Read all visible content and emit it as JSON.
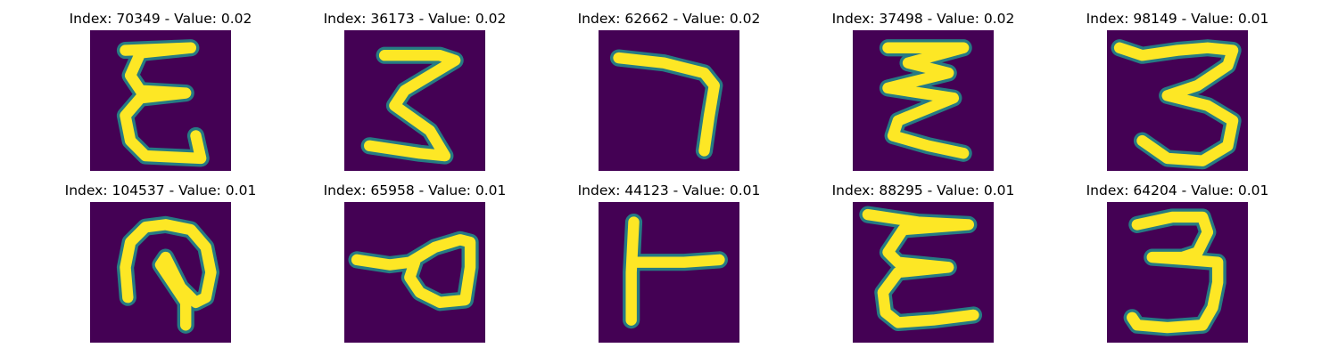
{
  "colors": {
    "background": "#440154",
    "stroke": "#fde725",
    "edge": "#21918c"
  },
  "panels": [
    {
      "title": "Index: 70349 - Value: 0.02",
      "glyph": "sigma-e"
    },
    {
      "title": "Index: 36173 - Value: 0.02",
      "glyph": "z-zigzag"
    },
    {
      "title": "Index: 62662 - Value: 0.02",
      "glyph": "seven-stroke"
    },
    {
      "title": "Index: 37498 - Value: 0.02",
      "glyph": "triple-zigzag"
    },
    {
      "title": "Index: 98149 - Value: 0.01",
      "glyph": "three"
    },
    {
      "title": "Index: 104537 - Value: 0.01",
      "glyph": "loop-hook"
    },
    {
      "title": "Index: 65958 - Value: 0.01",
      "glyph": "sideways-loop"
    },
    {
      "title": "Index: 44123 - Value: 0.01",
      "glyph": "tee"
    },
    {
      "title": "Index: 88295 - Value: 0.01",
      "glyph": "sigma-e-wide"
    },
    {
      "title": "Index: 64204 - Value: 0.01",
      "glyph": "three-bold"
    }
  ]
}
